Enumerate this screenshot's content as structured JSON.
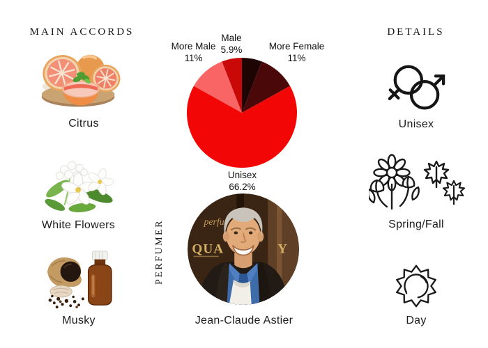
{
  "page": {
    "background": "#ffffff",
    "text_color": "#1c1c1c"
  },
  "main_accords": {
    "title": "MAIN ACCORDS",
    "items": [
      {
        "label": "Citrus",
        "image": "grapefruit-citrus-photo"
      },
      {
        "label": "White Flowers",
        "image": "white-jasmine-flowers-photo"
      },
      {
        "label": "Musky",
        "image": "musk-amber-bottle-photo"
      }
    ]
  },
  "perfumer": {
    "section_label": "PERFUMER",
    "name": "Jean-Claude Astier",
    "photo_text": {
      "line1": "perfu",
      "line2_left": "QUA",
      "line2_right": "Y"
    }
  },
  "details": {
    "title": "DETAILS",
    "items": [
      {
        "label": "Unisex",
        "icon": "unisex-gender-icon"
      },
      {
        "label": "Spring/Fall",
        "icon": "spring-fall-flowers-leaves-icon"
      },
      {
        "label": "Day",
        "icon": "day-sun-icon"
      }
    ]
  },
  "chart_data": {
    "type": "pie",
    "title": "",
    "unit": "%",
    "direction": "clockwise",
    "start": "12-o-clock",
    "slices": [
      {
        "label": "Female",
        "value": 5.9,
        "color": "#1f0404",
        "label_shown": false
      },
      {
        "label": "More Female",
        "value": 11,
        "color": "#4b0808",
        "label_shown": true
      },
      {
        "label": "Unisex",
        "value": 66.2,
        "color": "#f30606",
        "label_shown": true
      },
      {
        "label": "More Male",
        "value": 11,
        "color": "#f96565",
        "label_shown": true
      },
      {
        "label": "Male",
        "value": 5.9,
        "color": "#c90808",
        "label_shown": true
      }
    ],
    "callouts": {
      "more_male": {
        "name": "More Male",
        "pct": "11%"
      },
      "male": {
        "name": "Male",
        "pct": "5.9%"
      },
      "more_female": {
        "name": "More Female",
        "pct": "11%"
      },
      "unisex": {
        "name": "Unisex",
        "pct": "66.2%"
      }
    }
  }
}
